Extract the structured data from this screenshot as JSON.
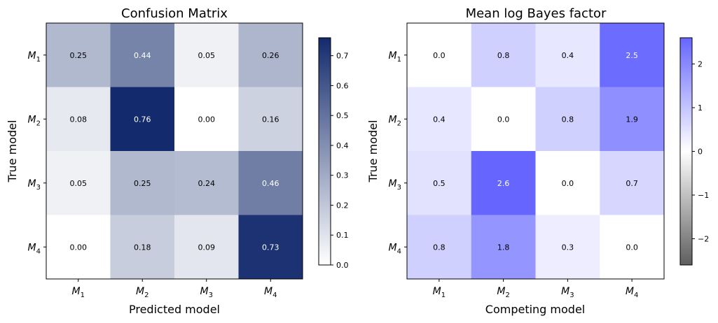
{
  "chart_data": [
    {
      "type": "heatmap",
      "title": "Confusion Matrix",
      "xlabel": "Predicted model",
      "ylabel": "True model",
      "rows": [
        "M1",
        "M2",
        "M3",
        "M4"
      ],
      "cols": [
        "M1",
        "M2",
        "M3",
        "M4"
      ],
      "values": [
        [
          0.25,
          0.44,
          0.05,
          0.26
        ],
        [
          0.08,
          0.76,
          0.0,
          0.16
        ],
        [
          0.05,
          0.25,
          0.24,
          0.46
        ],
        [
          0.0,
          0.18,
          0.09,
          0.73
        ]
      ],
      "value_labels": [
        [
          "0.25",
          "0.44",
          "0.05",
          "0.26"
        ],
        [
          "0.08",
          "0.76",
          "0.00",
          "0.16"
        ],
        [
          "0.05",
          "0.25",
          "0.24",
          "0.46"
        ],
        [
          "0.00",
          "0.18",
          "0.09",
          "0.73"
        ]
      ],
      "vmin": 0,
      "vmax": 0.76,
      "colorbar_ticks": [
        "0.0",
        "0.1",
        "0.2",
        "0.3",
        "0.4",
        "0.5",
        "0.6",
        "0.7"
      ],
      "color_low": "#ffffff",
      "color_high": "#132a6c"
    },
    {
      "type": "heatmap",
      "title": "Mean log Bayes factor",
      "xlabel": "Competing model",
      "ylabel": "True model",
      "rows": [
        "M1",
        "M2",
        "M3",
        "M4"
      ],
      "cols": [
        "M1",
        "M2",
        "M3",
        "M4"
      ],
      "values": [
        [
          0.0,
          0.8,
          0.4,
          2.5
        ],
        [
          0.4,
          0.0,
          0.8,
          1.9
        ],
        [
          0.5,
          2.6,
          0.0,
          0.7
        ],
        [
          0.8,
          1.8,
          0.3,
          0.0
        ]
      ],
      "value_labels": [
        [
          "0.0",
          "0.8",
          "0.4",
          "2.5"
        ],
        [
          "0.4",
          "0.0",
          "0.8",
          "1.9"
        ],
        [
          "0.5",
          "2.6",
          "0.0",
          "0.7"
        ],
        [
          "0.8",
          "1.8",
          "0.3",
          "0.0"
        ]
      ],
      "vmin": -2.6,
      "vmax": 2.6,
      "colorbar_ticks": [
        "−2",
        "−1",
        "0",
        "1",
        "2"
      ],
      "color_negative": "#5e5e5e",
      "color_mid": "#ffffff",
      "color_positive": "#6666ff"
    }
  ]
}
